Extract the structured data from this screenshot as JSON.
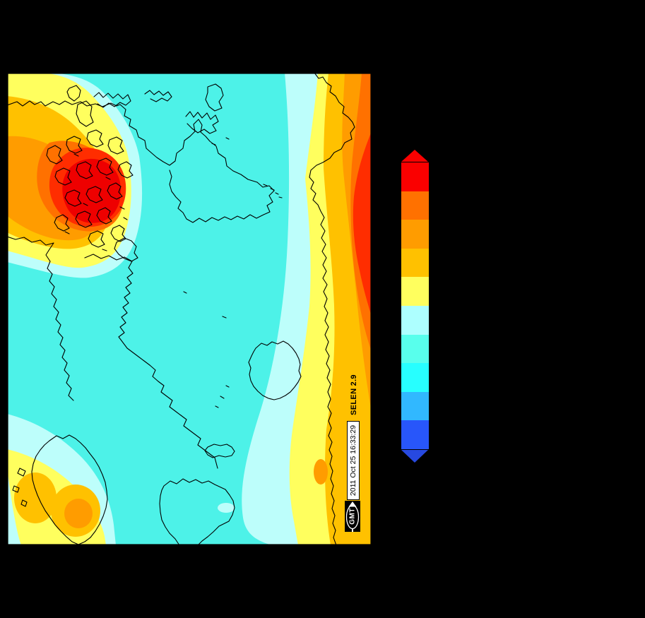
{
  "figure": {
    "background": "#000000"
  },
  "map": {
    "selen_label": "SELEN 2.9",
    "timestamp": "2011 Oct 25 16:33:29",
    "gmt_logo_text": "GMT"
  },
  "palette": {
    "deep-red": "#ee0000",
    "red-orange": "#ff2d00",
    "dark-orange": "#ff7100",
    "orange": "#ff9c00",
    "amber": "#ffc100",
    "yellow": "#ffff5e",
    "pale-cyan": "#bdfefb",
    "aqua": "#4df2e8",
    "cyan": "#27ffff",
    "coast": "#000000"
  },
  "colorbar": {
    "orientation": "vertical",
    "segments": [
      "#fa0000",
      "#ff7100",
      "#ff9c00",
      "#ffc100",
      "#ffff5e",
      "#adffff",
      "#58ffec",
      "#27ffff",
      "#31b8ff",
      "#2856fa"
    ],
    "top_cap": "#fa0000",
    "bottom_cap": "#2749e0"
  }
}
